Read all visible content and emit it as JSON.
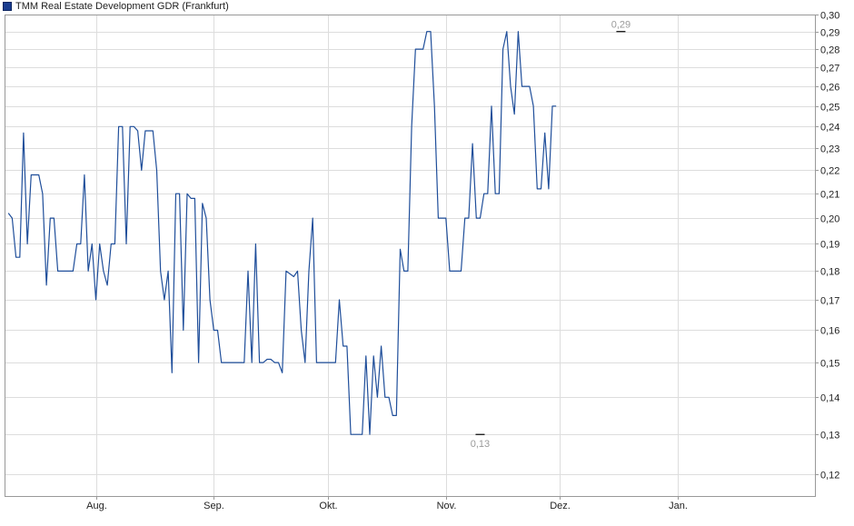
{
  "chart_data": {
    "type": "line",
    "title": "TMM Real Estate Development GDR (Frankfurt)",
    "xlabel": "",
    "ylabel": "",
    "ylim": [
      0.115,
      0.3
    ],
    "y_scale": "log",
    "grid": true,
    "colors": {
      "line": "#1f4e9a",
      "grid": "#dddddd",
      "axis": "#999999",
      "legend_swatch": "#1a3d8f"
    },
    "yticks": [
      "0,12",
      "0,13",
      "0,14",
      "0,15",
      "0,16",
      "0,17",
      "0,18",
      "0,19",
      "0,20",
      "0,21",
      "0,22",
      "0,23",
      "0,24",
      "0,25",
      "0,26",
      "0,27",
      "0,28",
      "0,29",
      "0,30"
    ],
    "ytick_values": [
      0.12,
      0.13,
      0.14,
      0.15,
      0.16,
      0.17,
      0.18,
      0.19,
      0.2,
      0.21,
      0.22,
      0.23,
      0.24,
      0.25,
      0.26,
      0.27,
      0.28,
      0.29,
      0.3
    ],
    "xticks": [
      "Aug.",
      "Sep.",
      "Okt.",
      "Nov.",
      "Dez.",
      "Jan."
    ],
    "xtick_days": [
      23,
      54,
      84,
      115,
      145,
      176
    ],
    "x_range_days": [
      -1,
      212
    ],
    "annotations": [
      {
        "label": "0,29",
        "day": 161,
        "value": 0.29,
        "position": "above"
      },
      {
        "label": "0,13",
        "day": 124,
        "value": 0.13,
        "position": "below"
      }
    ],
    "series": [
      {
        "name": "TMM Real Estate Development GDR (Frankfurt)",
        "points": [
          [
            0,
            0.202
          ],
          [
            1,
            0.2
          ],
          [
            2,
            0.185
          ],
          [
            3,
            0.185
          ],
          [
            4,
            0.237
          ],
          [
            5,
            0.19
          ],
          [
            6,
            0.218
          ],
          [
            7,
            0.218
          ],
          [
            8,
            0.218
          ],
          [
            9,
            0.21
          ],
          [
            10,
            0.175
          ],
          [
            11,
            0.2
          ],
          [
            12,
            0.2
          ],
          [
            13,
            0.18
          ],
          [
            14,
            0.18
          ],
          [
            15,
            0.18
          ],
          [
            16,
            0.18
          ],
          [
            17,
            0.18
          ],
          [
            18,
            0.19
          ],
          [
            19,
            0.19
          ],
          [
            20,
            0.218
          ],
          [
            21,
            0.18
          ],
          [
            22,
            0.19
          ],
          [
            23,
            0.17
          ],
          [
            24,
            0.19
          ],
          [
            25,
            0.18
          ],
          [
            26,
            0.175
          ],
          [
            27,
            0.19
          ],
          [
            28,
            0.19
          ],
          [
            29,
            0.24
          ],
          [
            30,
            0.24
          ],
          [
            31,
            0.19
          ],
          [
            32,
            0.24
          ],
          [
            33,
            0.24
          ],
          [
            34,
            0.238
          ],
          [
            35,
            0.22
          ],
          [
            36,
            0.238
          ],
          [
            37,
            0.238
          ],
          [
            38,
            0.238
          ],
          [
            39,
            0.22
          ],
          [
            40,
            0.18
          ],
          [
            41,
            0.17
          ],
          [
            42,
            0.18
          ],
          [
            43,
            0.147
          ],
          [
            44,
            0.21
          ],
          [
            45,
            0.21
          ],
          [
            46,
            0.16
          ],
          [
            47,
            0.21
          ],
          [
            48,
            0.208
          ],
          [
            49,
            0.208
          ],
          [
            50,
            0.15
          ],
          [
            51,
            0.206
          ],
          [
            52,
            0.2
          ],
          [
            53,
            0.17
          ],
          [
            54,
            0.16
          ],
          [
            55,
            0.16
          ],
          [
            56,
            0.15
          ],
          [
            57,
            0.15
          ],
          [
            58,
            0.15
          ],
          [
            59,
            0.15
          ],
          [
            60,
            0.15
          ],
          [
            61,
            0.15
          ],
          [
            62,
            0.15
          ],
          [
            63,
            0.18
          ],
          [
            64,
            0.15
          ],
          [
            65,
            0.19
          ],
          [
            66,
            0.15
          ],
          [
            67,
            0.15
          ],
          [
            68,
            0.151
          ],
          [
            69,
            0.151
          ],
          [
            70,
            0.15
          ],
          [
            71,
            0.15
          ],
          [
            72,
            0.147
          ],
          [
            73,
            0.18
          ],
          [
            74,
            0.179
          ],
          [
            75,
            0.178
          ],
          [
            76,
            0.18
          ],
          [
            77,
            0.16
          ],
          [
            78,
            0.15
          ],
          [
            79,
            0.18
          ],
          [
            80,
            0.2
          ],
          [
            81,
            0.15
          ],
          [
            82,
            0.15
          ],
          [
            83,
            0.15
          ],
          [
            84,
            0.15
          ],
          [
            85,
            0.15
          ],
          [
            86,
            0.15
          ],
          [
            87,
            0.17
          ],
          [
            88,
            0.155
          ],
          [
            89,
            0.155
          ],
          [
            90,
            0.13
          ],
          [
            91,
            0.13
          ],
          [
            92,
            0.13
          ],
          [
            93,
            0.13
          ],
          [
            94,
            0.152
          ],
          [
            95,
            0.13
          ],
          [
            96,
            0.152
          ],
          [
            97,
            0.14
          ],
          [
            98,
            0.155
          ],
          [
            99,
            0.14
          ],
          [
            100,
            0.14
          ],
          [
            101,
            0.135
          ],
          [
            102,
            0.135
          ],
          [
            103,
            0.188
          ],
          [
            104,
            0.18
          ],
          [
            105,
            0.18
          ],
          [
            106,
            0.24
          ],
          [
            107,
            0.28
          ],
          [
            108,
            0.28
          ],
          [
            109,
            0.28
          ],
          [
            110,
            0.29
          ],
          [
            111,
            0.29
          ],
          [
            112,
            0.25
          ],
          [
            113,
            0.2
          ],
          [
            114,
            0.2
          ],
          [
            115,
            0.2
          ],
          [
            116,
            0.18
          ],
          [
            117,
            0.18
          ],
          [
            118,
            0.18
          ],
          [
            119,
            0.18
          ],
          [
            120,
            0.2
          ],
          [
            121,
            0.2
          ],
          [
            122,
            0.232
          ],
          [
            123,
            0.2
          ],
          [
            124,
            0.2
          ],
          [
            125,
            0.21
          ],
          [
            126,
            0.21
          ],
          [
            127,
            0.25
          ],
          [
            128,
            0.21
          ],
          [
            129,
            0.21
          ],
          [
            130,
            0.28
          ],
          [
            131,
            0.29
          ],
          [
            132,
            0.26
          ],
          [
            133,
            0.246
          ],
          [
            134,
            0.29
          ],
          [
            135,
            0.26
          ],
          [
            136,
            0.26
          ],
          [
            137,
            0.26
          ],
          [
            138,
            0.25
          ],
          [
            139,
            0.212
          ],
          [
            140,
            0.212
          ],
          [
            141,
            0.237
          ],
          [
            142,
            0.212
          ],
          [
            143,
            0.25
          ],
          [
            144,
            0.25
          ]
        ]
      }
    ]
  }
}
